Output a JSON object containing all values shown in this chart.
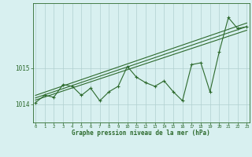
{
  "x": [
    0,
    1,
    2,
    3,
    4,
    5,
    6,
    7,
    8,
    9,
    10,
    11,
    12,
    13,
    14,
    15,
    16,
    17,
    18,
    19,
    20,
    21,
    22,
    23
  ],
  "y_main": [
    1014.05,
    1014.25,
    1014.2,
    1014.55,
    1014.5,
    1014.25,
    1014.45,
    1014.1,
    1014.35,
    1014.5,
    1015.05,
    1014.75,
    1014.6,
    1014.5,
    1014.65,
    1014.35,
    1014.1,
    1015.1,
    1015.15,
    1014.35,
    1015.45,
    1016.4,
    1016.1,
    1016.15
  ],
  "line_color": "#2d6a2d",
  "bg_color": "#d8f0f0",
  "grid_color": "#b0d0d0",
  "axis_color": "#2d6a2d",
  "xlabel": "Graphe pression niveau de la mer (hPa)",
  "ylim": [
    1013.5,
    1016.8
  ],
  "yticks": [
    1014,
    1015
  ],
  "xticks": [
    0,
    1,
    2,
    3,
    4,
    5,
    6,
    7,
    8,
    9,
    10,
    11,
    12,
    13,
    14,
    15,
    16,
    17,
    18,
    19,
    20,
    21,
    22,
    23
  ],
  "trend_lines": [
    [
      [
        0,
        1014.12
      ],
      [
        23,
        1016.05
      ]
    ],
    [
      [
        0,
        1014.18
      ],
      [
        23,
        1016.15
      ]
    ],
    [
      [
        0,
        1014.25
      ],
      [
        23,
        1016.25
      ]
    ]
  ]
}
